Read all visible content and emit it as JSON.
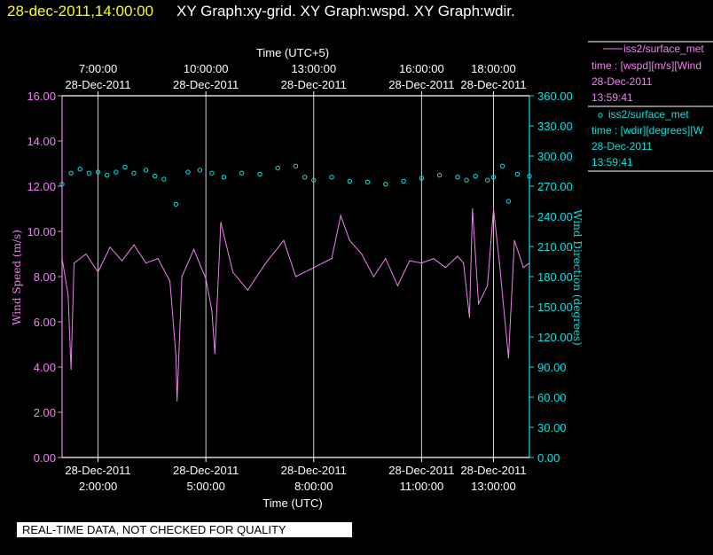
{
  "header": {
    "timestamp": "28-dec-2011,14:00:00",
    "graphs": "XY Graph:xy-grid.  XY Graph:wspd.  XY Graph:wdir."
  },
  "footer": {
    "notice": "REAL-TIME DATA, NOT CHECKED FOR QUALITY"
  },
  "colors": {
    "background": "#000000",
    "timestamp": "#ffff00",
    "text": "#ffffff",
    "wspd": "#ee82ee",
    "wdir": "#00e5e5",
    "grid": "#d0d0d0"
  },
  "legend": [
    {
      "symbol": "line",
      "title": "iss2/surface_met",
      "var": "time : [wspd][m/s][Wind",
      "date": "28-Dec-2011",
      "time": "13:59:41"
    },
    {
      "symbol": "circle",
      "title": "iss2/surface_met",
      "var": "time : [wdir][degrees][W",
      "date": "28-Dec-2011",
      "time": "13:59:41"
    }
  ],
  "chart_data": {
    "type": "line",
    "xlabel": "Time (UTC)",
    "x2label": "Time (UTC+5)",
    "ylabel": "Wind Speed (m/s)",
    "y2label": "Wind Direction (degrees)",
    "xlim": [
      "2011-12-28T01:00:00",
      "2011-12-28T14:00:00"
    ],
    "ylim": [
      0,
      16
    ],
    "y2lim": [
      0,
      360
    ],
    "yticks": [
      "0.00",
      "2.00",
      "4.00",
      "6.00",
      "8.00",
      "10.00",
      "12.00",
      "14.00",
      "16.00"
    ],
    "y2ticks": [
      "0.00",
      "30.00",
      "60.00",
      "90.00",
      "120.00",
      "150.00",
      "180.00",
      "210.00",
      "240.00",
      "270.00",
      "300.00",
      "330.00",
      "360.00"
    ],
    "xticks_bottom": [
      {
        "t": "2011-12-28T02:00:00",
        "date": "28-Dec-2011",
        "time": "2:00:00"
      },
      {
        "t": "2011-12-28T05:00:00",
        "date": "28-Dec-2011",
        "time": "5:00:00"
      },
      {
        "t": "2011-12-28T08:00:00",
        "date": "28-Dec-2011",
        "time": "8:00:00"
      },
      {
        "t": "2011-12-28T11:00:00",
        "date": "28-Dec-2011",
        "time": "11:00:00"
      },
      {
        "t": "2011-12-28T13:00:00",
        "date": "28-Dec-2011",
        "time": "13:00:00"
      }
    ],
    "xticks_top": [
      {
        "t": "2011-12-28T02:00:00",
        "date": "28-Dec-2011",
        "time": "7:00:00"
      },
      {
        "t": "2011-12-28T05:00:00",
        "date": "28-Dec-2011",
        "time": "10:00:00"
      },
      {
        "t": "2011-12-28T08:00:00",
        "date": "28-Dec-2011",
        "time": "13:00:00"
      },
      {
        "t": "2011-12-28T11:00:00",
        "date": "28-Dec-2011",
        "time": "16:00:00"
      },
      {
        "t": "2011-12-28T13:00:00",
        "date": "28-Dec-2011",
        "time": "18:00:00"
      }
    ],
    "grid": true,
    "series": [
      {
        "name": "wspd",
        "axis": "left",
        "style": "line",
        "points": [
          [
            "2011-12-28T01:00:00",
            8.8
          ],
          [
            "2011-12-28T01:10:00",
            7.2
          ],
          [
            "2011-12-28T01:15:00",
            3.9
          ],
          [
            "2011-12-28T01:20:00",
            8.6
          ],
          [
            "2011-12-28T01:40:00",
            9.0
          ],
          [
            "2011-12-28T02:00:00",
            8.2
          ],
          [
            "2011-12-28T02:20:00",
            9.3
          ],
          [
            "2011-12-28T02:40:00",
            8.7
          ],
          [
            "2011-12-28T03:00:00",
            9.4
          ],
          [
            "2011-12-28T03:20:00",
            8.6
          ],
          [
            "2011-12-28T03:40:00",
            8.8
          ],
          [
            "2011-12-28T04:00:00",
            7.8
          ],
          [
            "2011-12-28T04:10:00",
            4.5
          ],
          [
            "2011-12-28T04:12:00",
            2.5
          ],
          [
            "2011-12-28T04:20:00",
            8.0
          ],
          [
            "2011-12-28T04:40:00",
            9.2
          ],
          [
            "2011-12-28T05:00:00",
            7.9
          ],
          [
            "2011-12-28T05:10:00",
            6.5
          ],
          [
            "2011-12-28T05:15:00",
            4.6
          ],
          [
            "2011-12-28T05:25:00",
            10.4
          ],
          [
            "2011-12-28T05:45:00",
            8.2
          ],
          [
            "2011-12-28T06:10:00",
            7.4
          ],
          [
            "2011-12-28T06:40:00",
            8.6
          ],
          [
            "2011-12-28T07:10:00",
            9.6
          ],
          [
            "2011-12-28T07:30:00",
            8.0
          ],
          [
            "2011-12-28T08:00:00",
            8.4
          ],
          [
            "2011-12-28T08:30:00",
            8.8
          ],
          [
            "2011-12-28T08:45:00",
            10.7
          ],
          [
            "2011-12-28T09:00:00",
            9.6
          ],
          [
            "2011-12-28T09:20:00",
            9.0
          ],
          [
            "2011-12-28T09:40:00",
            8.0
          ],
          [
            "2011-12-28T10:00:00",
            8.8
          ],
          [
            "2011-12-28T10:20:00",
            7.6
          ],
          [
            "2011-12-28T10:40:00",
            8.7
          ],
          [
            "2011-12-28T11:00:00",
            8.6
          ],
          [
            "2011-12-28T11:20:00",
            8.8
          ],
          [
            "2011-12-28T11:40:00",
            8.4
          ],
          [
            "2011-12-28T12:00:00",
            8.9
          ],
          [
            "2011-12-28T12:10:00",
            8.6
          ],
          [
            "2011-12-28T12:20:00",
            6.2
          ],
          [
            "2011-12-28T12:25:00",
            11.0
          ],
          [
            "2011-12-28T12:35:00",
            6.8
          ],
          [
            "2011-12-28T12:50:00",
            7.6
          ],
          [
            "2011-12-28T13:00:00",
            11.0
          ],
          [
            "2011-12-28T13:10:00",
            8.6
          ],
          [
            "2011-12-28T13:25:00",
            4.4
          ],
          [
            "2011-12-28T13:35:00",
            9.6
          ],
          [
            "2011-12-28T13:50:00",
            8.4
          ],
          [
            "2011-12-28T14:00:00",
            8.6
          ]
        ]
      },
      {
        "name": "wdir",
        "axis": "right",
        "style": "circle",
        "points": [
          [
            "2011-12-28T01:00:00",
            272
          ],
          [
            "2011-12-28T01:15:00",
            283
          ],
          [
            "2011-12-28T01:30:00",
            287
          ],
          [
            "2011-12-28T01:45:00",
            283
          ],
          [
            "2011-12-28T02:00:00",
            284
          ],
          [
            "2011-12-28T02:15:00",
            281
          ],
          [
            "2011-12-28T02:30:00",
            284
          ],
          [
            "2011-12-28T02:45:00",
            289
          ],
          [
            "2011-12-28T03:00:00",
            283
          ],
          [
            "2011-12-28T03:20:00",
            286
          ],
          [
            "2011-12-28T03:35:00",
            280
          ],
          [
            "2011-12-28T03:50:00",
            277
          ],
          [
            "2011-12-28T04:10:00",
            252
          ],
          [
            "2011-12-28T04:30:00",
            284
          ],
          [
            "2011-12-28T04:50:00",
            286
          ],
          [
            "2011-12-28T05:10:00",
            283
          ],
          [
            "2011-12-28T05:30:00",
            279
          ],
          [
            "2011-12-28T06:00:00",
            283
          ],
          [
            "2011-12-28T06:30:00",
            282
          ],
          [
            "2011-12-28T07:00:00",
            288
          ],
          [
            "2011-12-28T07:30:00",
            290
          ],
          [
            "2011-12-28T07:45:00",
            279
          ],
          [
            "2011-12-28T08:00:00",
            276
          ],
          [
            "2011-12-28T08:30:00",
            279
          ],
          [
            "2011-12-28T09:00:00",
            275
          ],
          [
            "2011-12-28T09:30:00",
            274
          ],
          [
            "2011-12-28T10:00:00",
            272
          ],
          [
            "2011-12-28T10:30:00",
            275
          ],
          [
            "2011-12-28T11:00:00",
            278
          ],
          [
            "2011-12-28T11:30:00",
            281
          ],
          [
            "2011-12-28T12:00:00",
            279
          ],
          [
            "2011-12-28T12:15:00",
            276
          ],
          [
            "2011-12-28T12:30:00",
            280
          ],
          [
            "2011-12-28T12:50:00",
            276
          ],
          [
            "2011-12-28T13:00:00",
            279
          ],
          [
            "2011-12-28T13:15:00",
            290
          ],
          [
            "2011-12-28T13:25:00",
            255
          ],
          [
            "2011-12-28T13:40:00",
            282
          ],
          [
            "2011-12-28T14:00:00",
            280
          ]
        ]
      }
    ]
  }
}
